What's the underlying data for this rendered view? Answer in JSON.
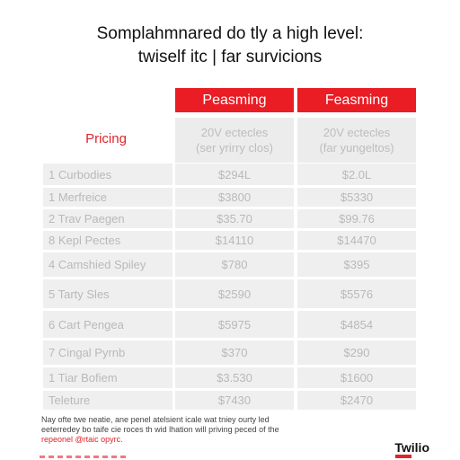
{
  "header": {
    "title": "Somplahmnared do tly a high level:",
    "subtitle": "twiself itc | far survicions"
  },
  "plans": [
    {
      "name": "Peasming",
      "desc_line1": "20V ectecles",
      "desc_line2": "(ser yrirry clos)"
    },
    {
      "name": "Feasming",
      "desc_line1": "20V ectecles",
      "desc_line2": "(far yungeltos)"
    }
  ],
  "pricing_label": "Pricing",
  "rows": [
    {
      "name": "1 Curbodies",
      "a": "$294L",
      "b": "$2.0L"
    },
    {
      "name": "1 Merfreice",
      "a": "$3800",
      "b": "$5330"
    },
    {
      "name": "2 Trav Paegen",
      "a": "$35.70",
      "b": "$99.76"
    },
    {
      "name": "8 Kepl Pectes",
      "a": "$14110",
      "b": "$14470"
    },
    {
      "name": "4 Camshied Spiley",
      "a": "$780",
      "b": "$395"
    },
    {
      "name": "5 Tarty Sles",
      "a": "$2590",
      "b": "$5576"
    },
    {
      "name": "6 Cart Pengea",
      "a": "$5975",
      "b": "$4854"
    },
    {
      "name": "7 Cingal Pyrnb",
      "a": "$370",
      "b": "$290"
    },
    {
      "name": "1 Tiar Bofiem",
      "a": "$3.530",
      "b": "$1600"
    },
    {
      "name": "Teleture",
      "a": "$7430",
      "b": "$2470"
    }
  ],
  "footnote": {
    "line1": "Nay ofte twe neatie, ane penel atelsient icale wat tniey ourty led",
    "line2": "eeterredey bo taife cie roces th wid lhation will priving peced of the",
    "line3": "repeonel @rtaic opyrc."
  },
  "logo": "Twilio",
  "colors": {
    "accent": "#ea1c24",
    "cell_bg": "#efefef"
  }
}
